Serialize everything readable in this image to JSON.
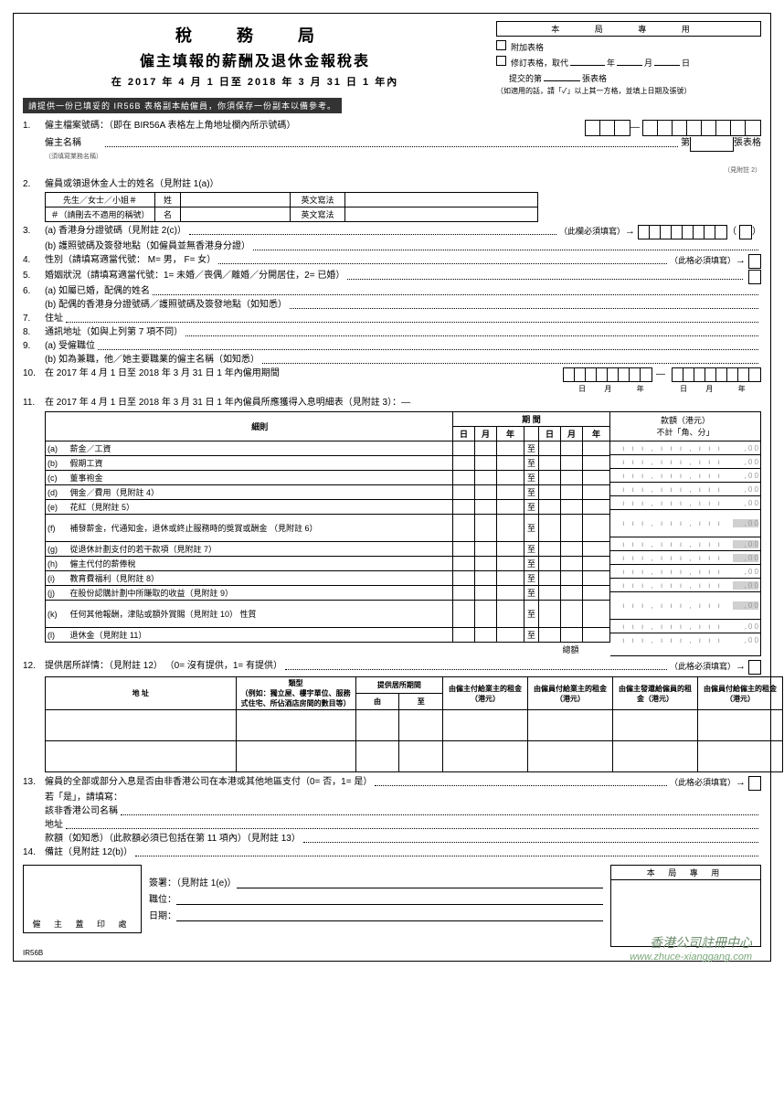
{
  "header": {
    "dept": "稅 務 局",
    "title": "僱主填報的薪酬及退休金報稅表",
    "period": "在 2017 年 4 月 1 日至 2018 年 3 月 31 日 1 年內",
    "office_use": "本 局 專 用",
    "attach": "附加表格",
    "revise": "修訂表格，取代",
    "y": "年",
    "m": "月",
    "d": "日",
    "submit_no": "提交的第",
    "sheet": "張表格",
    "note": "（如適用的話，請「✓」以上其一方格，並填上日期及張號）"
  },
  "notice": "請提供一份已填妥的 IR56B 表格副本給僱員，你須保存一份副本以備參考。",
  "q1": {
    "a": "僱主檔案號碼：（即在 BIR56A 表格左上角地址欄內所示號碼）",
    "b": "僱主名稱",
    "bs": "（須填寫業務名稱）",
    "c": "第",
    "d": "張表格",
    "e": "（見附註 2）"
  },
  "q2": {
    "t": "僱員或領退休金人士的姓名（見附註 1(a)）",
    "h1": "先生／女士／小姐＃",
    "h2": "＃（請刪去不適用的稱號）",
    "sur": "姓",
    "giv": "名",
    "eng": "英文寫法"
  },
  "q3": {
    "a": "(a) 香港身分證號碼（見附註 2(c)）",
    "must": "（此欄必須填寫）",
    "b": "(b) 護照號碼及簽發地點（如僱員並無香港身分證）"
  },
  "q4": "性別（請填寫適當代號： M= 男， F= 女）",
  "q4m": "（此格必須填寫）",
  "q5": "婚姻狀況（請填寫適當代號：1= 未婚／喪偶／離婚／分開居住，2= 已婚）",
  "q6a": "(a) 如屬已婚，配偶的姓名",
  "q6b": "(b) 配偶的香港身分證號碼／護照號碼及簽發地點（如知悉）",
  "q7": "住址",
  "q8": "通訊地址（如與上列第 7 項不同）",
  "q9a": "(a) 受僱職位",
  "q9b": "(b) 如為兼職，他／她主要職業的僱主名稱（如知悉）",
  "q10": "在 2017 年 4 月 1 日至 2018 年 3 月 31 日 1 年內僱用期間",
  "q11": {
    "t": "在 2017 年 4 月 1 日至 2018 年 3 月 31 日 1 年內僱員所應獲得入息明細表（見附註 3）：—",
    "h_item": "細則",
    "h_period": "期 間",
    "h_d": "日",
    "h_m": "月",
    "h_y": "年",
    "h_amt": "款額（港元）",
    "h_amt2": "不計「角、分」",
    "rows": [
      {
        "k": "(a)",
        "t": "薪金／工資"
      },
      {
        "k": "(b)",
        "t": "假期工資"
      },
      {
        "k": "(c)",
        "t": "董事袍金"
      },
      {
        "k": "(d)",
        "t": "佣金／費用（見附註 4）"
      },
      {
        "k": "(e)",
        "t": "花紅（見附註 5）"
      },
      {
        "k": "(f)",
        "t": "補發薪金，代通知金，退休或終止服務時的獎賞或酬金 （見附註 6）",
        "h": 2
      },
      {
        "k": "(g)",
        "t": "從退休計劃支付的若干款項（見附註 7）"
      },
      {
        "k": "(h)",
        "t": "僱主代付的薪俸稅"
      },
      {
        "k": "(i)",
        "t": "教育費福利（見附註 8）"
      },
      {
        "k": "(j)",
        "t": "在股份認購計劃中所賺取的收益（見附註 9）"
      },
      {
        "k": "(k)",
        "t": "任何其他報酬，津貼或額外賞賜（見附註 10） 性質",
        "h": 2
      },
      {
        "k": "(l)",
        "t": "退休金（見附註 11）"
      }
    ],
    "total": "總額"
  },
  "q12": {
    "t": "提供居所詳情：（見附註 12） （0= 沒有提供，1= 有提供）",
    "must": "（此格必須填寫）",
    "h_addr": "地 址",
    "h_type": "類型\n（例如：獨立屋、樓宇單位、服務式住宅、所佔酒店房間的數目等）",
    "h_period": "提供居所期間",
    "h_from": "由",
    "h_to": "至",
    "h_c1": "由僱主付給業主的租金（港元）",
    "h_c2": "由僱員付給業主的租金（港元）",
    "h_c3": "由僱主發還給僱員的租金（港元）",
    "h_c4": "由僱員付給僱主的租金（港元）"
  },
  "q13": {
    "t": "僱員的全部或部分入息是否由非香港公司在本港或其他地區支付（0= 否，1= 是）",
    "must": "（此格必須填寫）",
    "a": "若「是」，請填寫：",
    "b": "該非香港公司名稱",
    "c": "地址",
    "d": "款額（如知悉）（此款額必須已包括在第 11 項內）（見附註 13）"
  },
  "q14": "備註（見附註 12(b)）",
  "sig": {
    "stamp": "僱 主 蓋 印 處",
    "sign": "簽署：（見附註 1(e)）",
    "pos": "職位：",
    "date": "日期：",
    "box": "本 局 專 用"
  },
  "formno": "IR56B",
  "wm1": "香港公司註冊中心",
  "wm2": "www.zhuce-xianggang.com"
}
